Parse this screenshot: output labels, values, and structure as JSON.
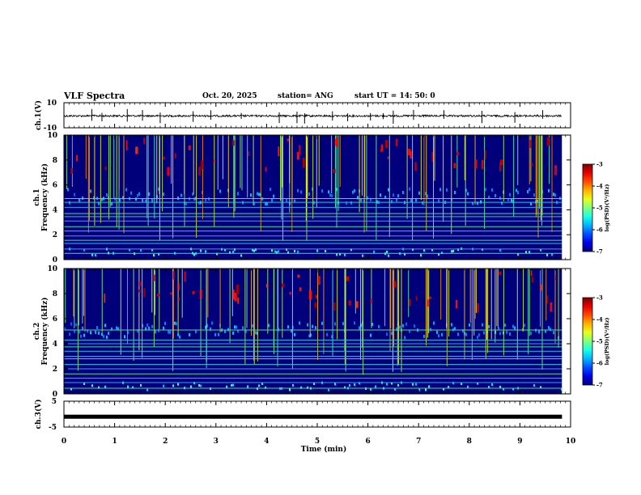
{
  "header": {
    "title": "VLF Spectra",
    "date": "Oct. 20, 2025",
    "station": "station= ANG",
    "start": "start  UT  =   14: 50: 0"
  },
  "chart_data": [
    {
      "type": "line",
      "name": "ch1-waveform",
      "ylabel": "ch.1(V)",
      "ylim": [
        -10,
        10
      ],
      "yticks": [
        "10",
        "-10"
      ],
      "baseline": -0.5,
      "spike_times_min": [
        0.55,
        0.75,
        1.25,
        1.55,
        1.9,
        2.55,
        2.9,
        3.5,
        4.25,
        4.6,
        4.75,
        5.3,
        5.6,
        6.05,
        6.3,
        6.5,
        6.9,
        7.5,
        8.25,
        8.9,
        9.45
      ]
    },
    {
      "type": "heatmap",
      "name": "ch1-spectrogram",
      "ylabel_top": "ch.1",
      "ylabel": "Frequency (kHz)",
      "ylim": [
        0,
        10
      ],
      "yticks": [
        "0",
        "2",
        "4",
        "6",
        "8",
        "10"
      ],
      "hum_lines_khz": [
        0.5,
        0.85,
        1.3,
        1.55,
        1.9,
        2.3,
        2.65,
        3.1,
        3.45,
        3.7,
        4.2,
        4.6,
        4.9
      ],
      "colorbar": {
        "label": "log(PSD)(V²/Hz)",
        "range": [
          -7,
          -3
        ],
        "ticks": [
          "-3",
          "-4",
          "-5",
          "-6",
          "-7"
        ]
      }
    },
    {
      "type": "heatmap",
      "name": "ch2-spectrogram",
      "ylabel_top": "ch.2",
      "ylabel": "Frequency (kHz)",
      "ylim": [
        0,
        10
      ],
      "yticks": [
        "0",
        "2",
        "4",
        "6",
        "8",
        "10"
      ],
      "hum_lines_khz": [
        0.45,
        0.9,
        1.25,
        1.6,
        2.0,
        2.35,
        2.8,
        3.0,
        3.4,
        3.75,
        4.0,
        4.3,
        5.1
      ],
      "colorbar": {
        "label": "log(PSD)(V²/Hz)",
        "range": [
          -7,
          -3
        ],
        "ticks": [
          "-3",
          "-4",
          "-5",
          "-6",
          "-7"
        ]
      }
    },
    {
      "type": "line",
      "name": "ch3-waveform",
      "ylabel": "ch.3(V)",
      "ylim": [
        -5,
        5
      ],
      "yticks": [
        "5",
        "-5"
      ],
      "baseline": -1.0
    }
  ],
  "xaxis": {
    "label": "Time  (min)",
    "xlim": [
      0,
      10
    ],
    "ticks": [
      "0",
      "1",
      "2",
      "3",
      "4",
      "5",
      "6",
      "7",
      "8",
      "9",
      "10"
    ],
    "data_end_min": 9.83
  }
}
